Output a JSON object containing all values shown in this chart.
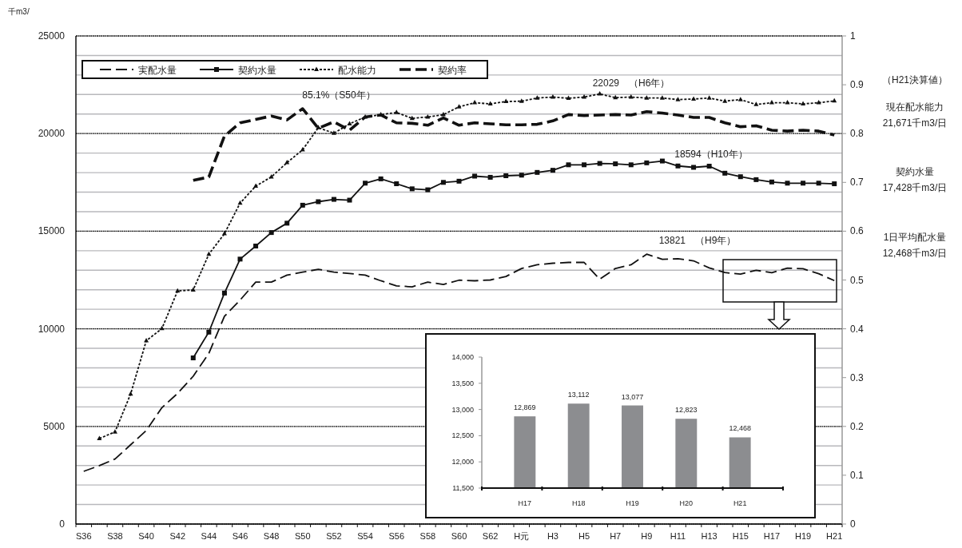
{
  "chart_data": [
    {
      "type": "line",
      "ylabel": "千m3/",
      "categories": [
        "S36",
        null,
        "S38",
        null,
        "S40",
        null,
        "S42",
        null,
        "S44",
        null,
        "S46",
        null,
        "S48",
        null,
        "S50",
        null,
        "S52",
        null,
        "S54",
        null,
        "S56",
        null,
        "S58",
        null,
        "S60",
        null,
        "S62",
        null,
        "H元",
        null,
        "H3",
        null,
        "H5",
        null,
        "H7",
        null,
        "H9",
        null,
        "H11",
        null,
        "H13",
        null,
        "H15",
        null,
        "H17",
        null,
        "H19",
        null,
        "H21"
      ],
      "series": [
        {
          "name": "実配水量",
          "color": "#111111",
          "line_style": "dashed",
          "marker": "none",
          "values": [
            2700,
            2990,
            3330,
            4060,
            4790,
            5960,
            6690,
            7570,
            8740,
            10640,
            11470,
            12390,
            12390,
            12750,
            12900,
            13050,
            12900,
            12830,
            12750,
            12460,
            12200,
            12150,
            12390,
            12270,
            12490,
            12460,
            12500,
            12680,
            13090,
            13280,
            13360,
            13400,
            13400,
            12540,
            13090,
            13280,
            13821,
            13560,
            13590,
            13480,
            13120,
            12880,
            12800,
            13000,
            12869,
            13112,
            13077,
            12823,
            12468
          ]
        },
        {
          "name": "契約水量",
          "color": "#111111",
          "line_style": "solid",
          "marker": "square",
          "values": [
            null,
            null,
            null,
            null,
            null,
            null,
            null,
            8510,
            9830,
            11830,
            13570,
            14240,
            14930,
            15410,
            16330,
            16510,
            16630,
            16590,
            17460,
            17680,
            17430,
            17170,
            17120,
            17500,
            17560,
            17820,
            17760,
            17840,
            17870,
            18010,
            18120,
            18400,
            18400,
            18470,
            18450,
            18400,
            18500,
            18594,
            18340,
            18270,
            18330,
            17970,
            17790,
            17640,
            17520,
            17460,
            17460,
            17460,
            17428
          ]
        },
        {
          "name": "配水能力",
          "color": "#111111",
          "line_style": "dotted",
          "marker": "triangle",
          "values": [
            null,
            4380,
            4720,
            6660,
            9390,
            10010,
            11940,
            11990,
            13820,
            14870,
            16440,
            17310,
            17780,
            18510,
            19170,
            20300,
            20020,
            20500,
            20850,
            20970,
            21080,
            20780,
            20850,
            20970,
            21370,
            21580,
            21520,
            21640,
            21660,
            21820,
            21870,
            21810,
            21870,
            22029,
            21840,
            21870,
            21820,
            21820,
            21740,
            21770,
            21820,
            21660,
            21740,
            21490,
            21580,
            21580,
            21520,
            21580,
            21671
          ]
        },
        {
          "name": "契約率",
          "color": "#111111",
          "line_style": "dashed",
          "marker": "none",
          "axis": "y2",
          "values": [
            null,
            null,
            null,
            null,
            null,
            null,
            null,
            0.704,
            0.711,
            0.795,
            0.822,
            0.829,
            0.836,
            0.828,
            0.851,
            0.811,
            0.824,
            0.807,
            0.834,
            0.838,
            0.822,
            0.821,
            0.817,
            0.832,
            0.817,
            0.822,
            0.82,
            0.818,
            0.818,
            0.819,
            0.826,
            0.839,
            0.837,
            0.838,
            0.839,
            0.838,
            0.845,
            0.842,
            0.838,
            0.833,
            0.833,
            0.822,
            0.814,
            0.816,
            0.807,
            0.805,
            0.807,
            0.805,
            0.797
          ]
        }
      ],
      "ylim": [
        0,
        25000
      ],
      "yticks": [
        0,
        {
          "value": 1000,
          "label": null
        },
        {
          "value": 2000,
          "label": null
        },
        {
          "value": 3000,
          "label": null
        },
        {
          "value": 4000,
          "label": null
        },
        5000,
        {
          "value": 6000,
          "label": null
        },
        {
          "value": 7000,
          "label": null
        },
        {
          "value": 8000,
          "label": null
        },
        {
          "value": 9000,
          "label": null
        },
        10000,
        {
          "value": 11000,
          "label": null
        },
        {
          "value": 12000,
          "label": null
        },
        {
          "value": 13000,
          "label": null
        },
        {
          "value": 14000,
          "label": null
        },
        15000,
        {
          "value": 16000,
          "label": null
        },
        {
          "value": 17000,
          "label": null
        },
        {
          "value": 18000,
          "label": null
        },
        {
          "value": 19000,
          "label": null
        },
        20000,
        {
          "value": 21000,
          "label": null
        },
        {
          "value": 22000,
          "label": null
        },
        {
          "value": 23000,
          "label": null
        },
        {
          "value": 24000,
          "label": null
        },
        25000
      ],
      "y2lim": [
        0,
        1
      ],
      "y2ticks": [
        0,
        0.1,
        0.2,
        0.3,
        0.4,
        0.5,
        0.6,
        0.7,
        0.8,
        0.9,
        1
      ],
      "grid": "y",
      "legend": "top left",
      "annotations": [
        "85.1%（S50年）",
        "22029　（H6年）",
        "18594（H10年）",
        "13821　（H9年）",
        "（H21決算値）",
        "現在配水能力",
        "21,671千m3/日",
        "契約水量",
        "17,428千m3/日",
        "1日平均配水量",
        "12,468千m3/日"
      ]
    },
    {
      "type": "bar",
      "categories": [
        "H17",
        "H18",
        "H19",
        "H20",
        "H21"
      ],
      "values": [
        12869,
        13112,
        13077,
        12823,
        12468
      ],
      "color": "#8c8d90",
      "value_labels": [
        "12,869",
        "13,112",
        "13,077",
        "12,823",
        "12,468"
      ],
      "ylim": [
        11500,
        14000
      ],
      "yticks": [
        {
          "value": 11500,
          "label": "11,500"
        },
        {
          "value": 12000,
          "label": "12,000"
        },
        {
          "value": 12500,
          "label": "12,500"
        },
        {
          "value": 13000,
          "label": "13,000"
        },
        {
          "value": 13500,
          "label": "13,500"
        },
        {
          "value": 14000,
          "label": "14,000"
        }
      ]
    }
  ]
}
